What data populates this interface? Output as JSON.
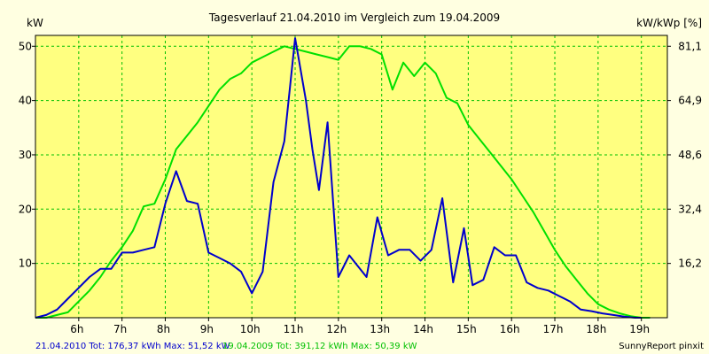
{
  "chart_data": {
    "type": "line",
    "title": "Tagesverlauf 21.04.2010 im Vergleich zum 19.04.2009",
    "ylabel_left": "kW",
    "ylabel_right": "kW/kWp [%]",
    "xlim": [
      5.0,
      19.6
    ],
    "ylim": [
      0,
      52
    ],
    "x_ticks": [
      {
        "v": 6,
        "label": "6h"
      },
      {
        "v": 7,
        "label": "7h"
      },
      {
        "v": 8,
        "label": "8h"
      },
      {
        "v": 9,
        "label": "9h"
      },
      {
        "v": 10,
        "label": "10h"
      },
      {
        "v": 11,
        "label": "11h"
      },
      {
        "v": 12,
        "label": "12h"
      },
      {
        "v": 13,
        "label": "13h"
      },
      {
        "v": 14,
        "label": "14h"
      },
      {
        "v": 15,
        "label": "15h"
      },
      {
        "v": 16,
        "label": "16h"
      },
      {
        "v": 17,
        "label": "17h"
      },
      {
        "v": 18,
        "label": "18h"
      },
      {
        "v": 19,
        "label": "19h"
      }
    ],
    "y_ticks_left": [
      {
        "v": 10,
        "label": "10"
      },
      {
        "v": 20,
        "label": "20"
      },
      {
        "v": 30,
        "label": "30"
      },
      {
        "v": 40,
        "label": "40"
      },
      {
        "v": 50,
        "label": "50"
      }
    ],
    "y_ticks_right": [
      {
        "v": 10,
        "label": "16,2"
      },
      {
        "v": 20,
        "label": "32,4"
      },
      {
        "v": 30,
        "label": "48,6"
      },
      {
        "v": 40,
        "label": "64,9"
      },
      {
        "v": 50,
        "label": "81,1"
      }
    ],
    "grid": true,
    "series": [
      {
        "name": "21.04.2010",
        "color": "#0000cc",
        "x": [
          5.0,
          5.25,
          5.5,
          5.75,
          6.0,
          6.25,
          6.5,
          6.75,
          7.0,
          7.25,
          7.5,
          7.75,
          8.0,
          8.25,
          8.5,
          8.75,
          9.0,
          9.25,
          9.5,
          9.75,
          10.0,
          10.25,
          10.5,
          10.75,
          11.0,
          11.25,
          11.4,
          11.55,
          11.75,
          12.0,
          12.25,
          12.4,
          12.65,
          12.9,
          13.15,
          13.4,
          13.65,
          13.9,
          14.15,
          14.4,
          14.65,
          14.9,
          15.1,
          15.35,
          15.6,
          15.85,
          16.1,
          16.35,
          16.6,
          16.85,
          17.1,
          17.35,
          17.6,
          17.85,
          18.1,
          18.35,
          18.6,
          18.85,
          19.0
        ],
        "y": [
          0.0,
          0.5,
          1.5,
          3.5,
          5.5,
          7.5,
          9.0,
          9.0,
          12.0,
          12.0,
          12.5,
          13.0,
          21.0,
          27.0,
          21.5,
          21.0,
          12.0,
          11.0,
          10.0,
          8.5,
          4.5,
          8.5,
          25.0,
          32.5,
          51.5,
          40.0,
          31.0,
          23.5,
          36.0,
          7.5,
          11.5,
          10.0,
          7.5,
          18.5,
          11.5,
          12.5,
          12.5,
          10.5,
          12.5,
          22.0,
          6.5,
          16.5,
          6.0,
          7.0,
          13.0,
          11.5,
          11.5,
          6.5,
          5.5,
          5.0,
          4.0,
          3.0,
          1.5,
          1.2,
          0.8,
          0.5,
          0.2,
          0.0,
          0.0
        ]
      },
      {
        "name": "19.04.2009",
        "color": "#00e000",
        "x": [
          5.0,
          5.25,
          5.5,
          5.75,
          6.0,
          6.25,
          6.5,
          6.75,
          7.0,
          7.25,
          7.5,
          7.75,
          8.0,
          8.25,
          8.5,
          8.75,
          9.0,
          9.25,
          9.5,
          9.75,
          10.0,
          10.25,
          10.5,
          10.75,
          11.0,
          11.25,
          11.5,
          11.75,
          12.0,
          12.25,
          12.5,
          12.75,
          13.0,
          13.25,
          13.5,
          13.75,
          14.0,
          14.25,
          14.5,
          14.75,
          15.0,
          15.25,
          15.5,
          15.75,
          16.0,
          16.25,
          16.5,
          16.75,
          17.0,
          17.25,
          17.5,
          17.75,
          18.0,
          18.25,
          18.5,
          18.75,
          19.0,
          19.2
        ],
        "y": [
          0.0,
          0.0,
          0.5,
          1.0,
          3.0,
          5.0,
          7.5,
          10.5,
          13.0,
          16.0,
          20.5,
          21.0,
          25.5,
          31.0,
          33.5,
          36.0,
          39.0,
          42.0,
          44.0,
          45.0,
          47.0,
          48.0,
          49.0,
          50.0,
          49.5,
          49.0,
          48.5,
          48.0,
          47.5,
          50.0,
          50.0,
          49.5,
          48.5,
          42.0,
          47.0,
          44.5,
          47.0,
          45.0,
          40.5,
          39.5,
          35.5,
          33.0,
          30.5,
          28.0,
          25.5,
          22.5,
          19.5,
          16.0,
          12.5,
          9.5,
          7.0,
          4.5,
          2.5,
          1.5,
          0.8,
          0.3,
          0.0,
          0.0
        ]
      }
    ]
  },
  "footer": {
    "series1_summary": "21.04.2010 Tot: 176,37 kWh Max: 51,52 kW",
    "series2_summary": "19.04.2009 Tot: 391,12 kWh Max: 50,39 kW",
    "brand": "SunnyReport pinxit"
  },
  "colors": {
    "background": "#ffffe1",
    "plot_background": "#ffff80",
    "grid": "#00c000",
    "axis": "#000000"
  }
}
